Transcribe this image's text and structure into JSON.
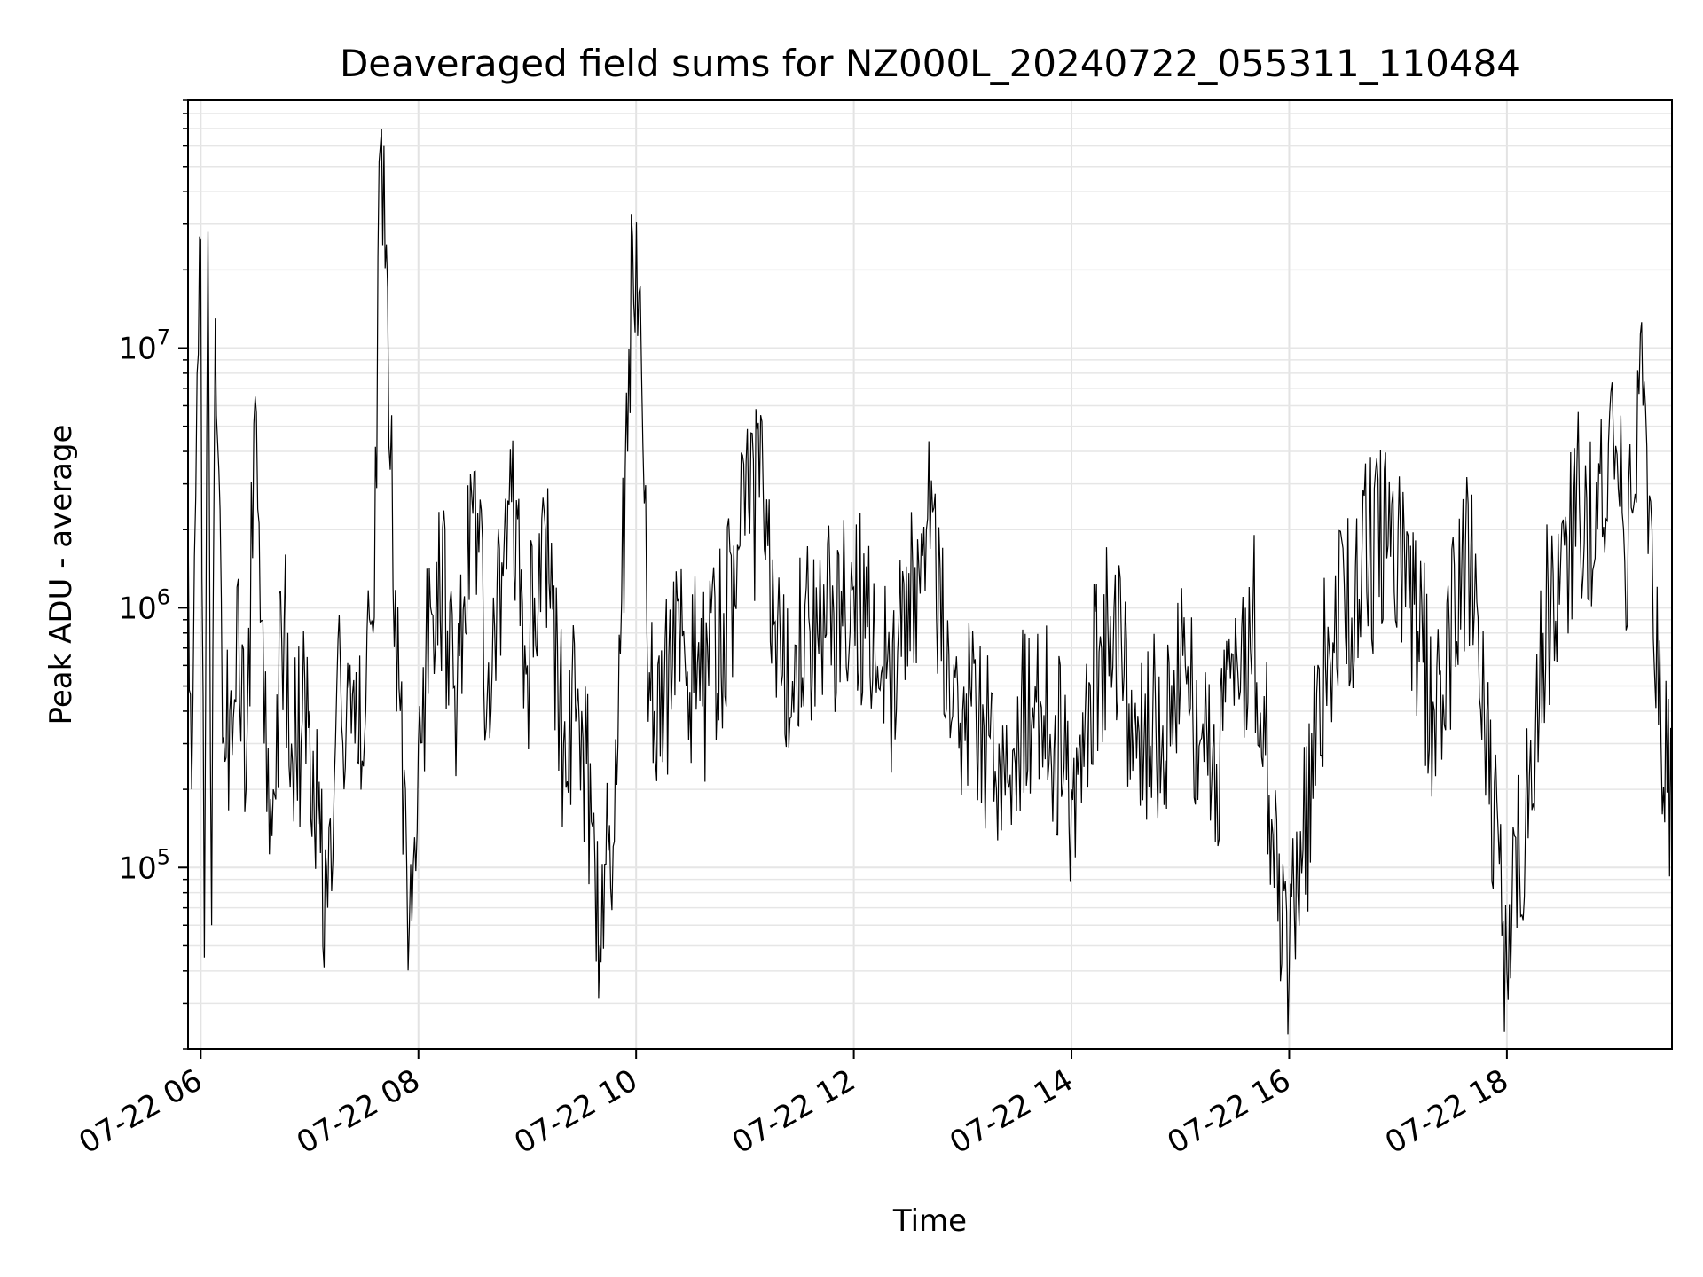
{
  "chart_data": {
    "type": "line",
    "title": "Deaveraged field sums for NZ000L_20240722_055311_110484",
    "xlabel": "Time",
    "ylabel": "Peak ADU - average",
    "yscale": "log",
    "ylim": [
      20000,
      90000000
    ],
    "xlim": [
      "2024-07-22 05:53",
      "2024-07-22 19:31"
    ],
    "grid": true,
    "line_color": "#000000",
    "x_ticks": [
      {
        "value": "2024-07-22 06:00",
        "label": "07-22 06"
      },
      {
        "value": "2024-07-22 08:00",
        "label": "07-22 08"
      },
      {
        "value": "2024-07-22 10:00",
        "label": "07-22 10"
      },
      {
        "value": "2024-07-22 12:00",
        "label": "07-22 12"
      },
      {
        "value": "2024-07-22 14:00",
        "label": "07-22 14"
      },
      {
        "value": "2024-07-22 16:00",
        "label": "07-22 16"
      },
      {
        "value": "2024-07-22 18:00",
        "label": "07-22 18"
      }
    ],
    "y_ticks": [
      {
        "value": 100000,
        "base": "10",
        "exp": "5"
      },
      {
        "value": 1000000,
        "base": "10",
        "exp": "6"
      },
      {
        "value": 10000000,
        "base": "10",
        "exp": "7"
      }
    ],
    "series": [
      {
        "x": [
          "2024-07-22 05:53",
          "2024-07-22 05:55",
          "2024-07-22 05:58",
          "2024-07-22 06:00",
          "2024-07-22 06:02",
          "2024-07-22 06:04",
          "2024-07-22 06:06",
          "2024-07-22 06:08",
          "2024-07-22 06:12",
          "2024-07-22 06:16",
          "2024-07-22 06:20",
          "2024-07-22 06:25",
          "2024-07-22 06:30",
          "2024-07-22 06:35",
          "2024-07-22 06:40",
          "2024-07-22 06:46",
          "2024-07-22 06:50",
          "2024-07-22 07:00",
          "2024-07-22 07:10",
          "2024-07-22 07:15",
          "2024-07-22 07:25",
          "2024-07-22 07:35",
          "2024-07-22 07:39",
          "2024-07-22 07:41",
          "2024-07-22 07:43",
          "2024-07-22 07:46",
          "2024-07-22 07:50",
          "2024-07-22 07:55",
          "2024-07-22 08:00",
          "2024-07-22 08:10",
          "2024-07-22 08:20",
          "2024-07-22 08:30",
          "2024-07-22 08:40",
          "2024-07-22 08:50",
          "2024-07-22 09:00",
          "2024-07-22 09:10",
          "2024-07-22 09:20",
          "2024-07-22 09:30",
          "2024-07-22 09:40",
          "2024-07-22 09:50",
          "2024-07-22 09:58",
          "2024-07-22 10:03",
          "2024-07-22 10:06",
          "2024-07-22 10:10",
          "2024-07-22 10:20",
          "2024-07-22 10:40",
          "2024-07-22 11:00",
          "2024-07-22 11:10",
          "2024-07-22 11:20",
          "2024-07-22 11:40",
          "2024-07-22 12:00",
          "2024-07-22 12:20",
          "2024-07-22 12:40",
          "2024-07-22 13:00",
          "2024-07-22 13:20",
          "2024-07-22 13:40",
          "2024-07-22 14:00",
          "2024-07-22 14:20",
          "2024-07-22 14:40",
          "2024-07-22 15:00",
          "2024-07-22 15:20",
          "2024-07-22 15:40",
          "2024-07-22 16:00",
          "2024-07-22 16:20",
          "2024-07-22 16:40",
          "2024-07-22 17:00",
          "2024-07-22 17:20",
          "2024-07-22 17:40",
          "2024-07-22 18:00",
          "2024-07-22 18:20",
          "2024-07-22 18:40",
          "2024-07-22 18:50",
          "2024-07-22 19:00",
          "2024-07-22 19:05",
          "2024-07-22 19:10",
          "2024-07-22 19:15",
          "2024-07-22 19:20",
          "2024-07-22 19:25",
          "2024-07-22 19:31"
        ],
        "values": [
          2500000,
          200000,
          8000000,
          26000000,
          45000,
          28000000,
          60000,
          13000000,
          300000,
          400000,
          1200000,
          200000,
          6500000,
          300000,
          200000,
          900000,
          300000,
          400000,
          70000,
          500000,
          300000,
          800000,
          60000000,
          60000000,
          17000000,
          1200000,
          400000,
          60000,
          300000,
          1500000,
          500000,
          2300000,
          400000,
          2500000,
          600000,
          2000000,
          300000,
          400000,
          50000,
          300000,
          27000000,
          8000000,
          800000,
          400000,
          600000,
          500000,
          1900000,
          3000000,
          500000,
          800000,
          1200000,
          500000,
          2000000,
          400000,
          300000,
          500000,
          200000,
          900000,
          300000,
          500000,
          250000,
          1000000,
          40000,
          600000,
          1500000,
          2000000,
          400000,
          1500000,
          40000,
          800000,
          2500000,
          2000000,
          4200000,
          1500000,
          2500000,
          6000000,
          2000000,
          300000,
          150000
        ]
      }
    ]
  }
}
